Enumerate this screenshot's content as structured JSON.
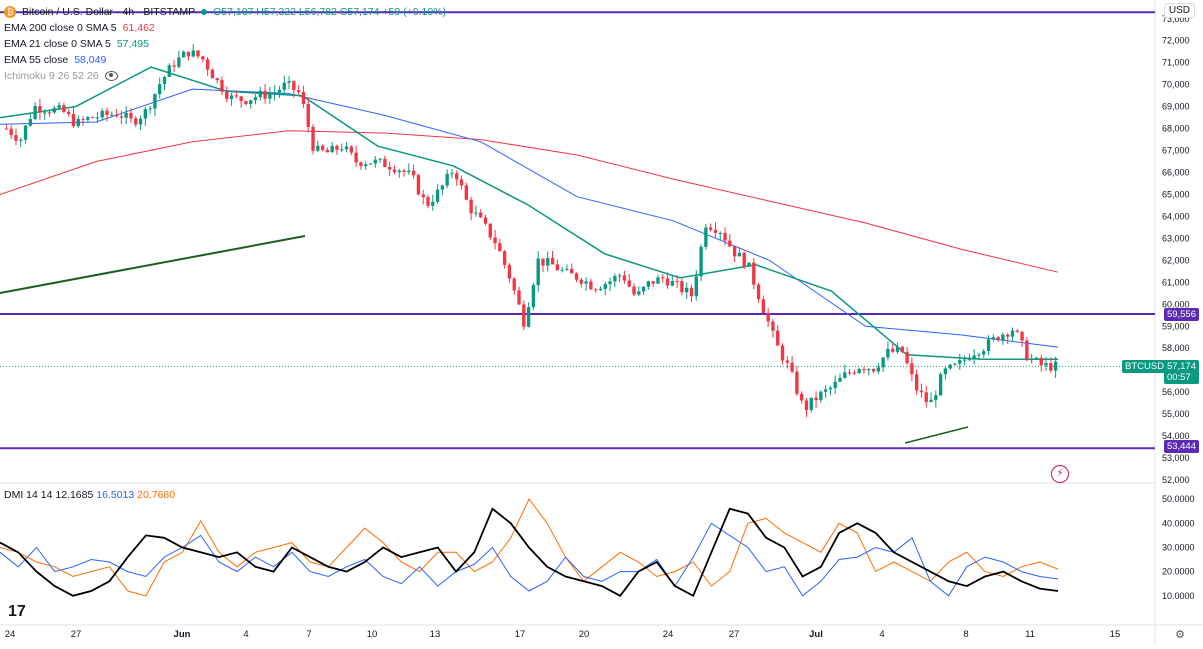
{
  "header": {
    "symbol": "Bitcoin / U.S. Dollar · 4h · BITSTAMP",
    "ohlc": "O57,107 H57,322 L56,782 C57,174 +59 (+0.10%)",
    "indicators": [
      {
        "label": "EMA 200 close 0 SMA 5",
        "value": "61,462",
        "color": "#f23645"
      },
      {
        "label": "EMA 21 close 0 SMA 5",
        "value": "57,495",
        "color": "#089981"
      },
      {
        "label": "EMA 55 close",
        "value": "58,049",
        "color": "#2962ff"
      },
      {
        "label": "Ichimoku 9 26 52 26",
        "value": "",
        "color": "#787b86"
      }
    ]
  },
  "dmi": {
    "label": "DMI 14 14",
    "adx": "12.1685",
    "plus": "16.5013",
    "minus": "20.7680",
    "plus_color": "#2962ff",
    "minus_color": "#ff6d00",
    "adx_color": "#000000"
  },
  "currency_button": "USD",
  "price_axis": [
    "73,000",
    "72,000",
    "71,000",
    "70,000",
    "69,000",
    "68,000",
    "67,000",
    "66,000",
    "65,000",
    "64,000",
    "63,000",
    "62,000",
    "61,000",
    "60,000",
    "59,000",
    "58,000",
    "57,000",
    "56,000",
    "55,000",
    "54,000",
    "53,000",
    "52,000"
  ],
  "dmi_axis": [
    "50.0000",
    "40.0000",
    "30.0000",
    "20.0000",
    "10.0000"
  ],
  "time_axis": [
    "24",
    "27",
    "Jun",
    "4",
    "7",
    "10",
    "13",
    "17",
    "20",
    "24",
    "27",
    "Jul",
    "4",
    "8",
    "11",
    "15"
  ],
  "level_tags": {
    "upper": "59,556",
    "lower": "53,444"
  },
  "last_price": {
    "symbol": "BTCUSD",
    "price": "57,174",
    "countdown": "00:57"
  },
  "colors": {
    "bull": "#089981",
    "bear": "#f23645",
    "level_line": "#5b2bb5",
    "trendline": "#1b5e20"
  },
  "chart_data": {
    "type": "candlestick",
    "ylim": [
      52000,
      73400
    ],
    "levels": [
      73300,
      59556,
      53444
    ],
    "close_series_approx": [
      68000,
      67500,
      69000,
      68900,
      68800,
      68200,
      68500,
      68600,
      68700,
      68300,
      68800,
      70100,
      71000,
      71500,
      71200,
      70200,
      69400,
      69300,
      69500,
      69600,
      70000,
      69600,
      67000,
      66900,
      67200,
      66500,
      66500,
      66400,
      66200,
      65800,
      64500,
      65200,
      66200,
      64500,
      63700,
      62800,
      61200,
      59200,
      62000,
      61800,
      61400,
      61200,
      60800,
      61000,
      61400,
      60300,
      61000,
      61200,
      60800,
      60400,
      63700,
      63400,
      62400,
      61800,
      60000,
      58200,
      57000,
      55200,
      55800,
      56200,
      56800,
      57200,
      57100,
      57800,
      57900,
      56200,
      55400,
      56900,
      57200,
      57800,
      58100,
      58600,
      58900,
      57600,
      57200,
      57174
    ],
    "ema200_approx": [
      65000,
      66500,
      67400,
      67900,
      67800,
      67500,
      66800,
      65700,
      64700,
      63700,
      62500,
      61462
    ],
    "ema21_approx": [
      68500,
      69000,
      70800,
      69700,
      69500,
      67200,
      66300,
      64500,
      62300,
      61200,
      61800,
      60600,
      57700,
      57500,
      57495
    ],
    "ema55_approx": [
      68200,
      68300,
      69800,
      69600,
      68600,
      67400,
      64900,
      63800,
      62000,
      59000,
      58600,
      58049
    ]
  }
}
